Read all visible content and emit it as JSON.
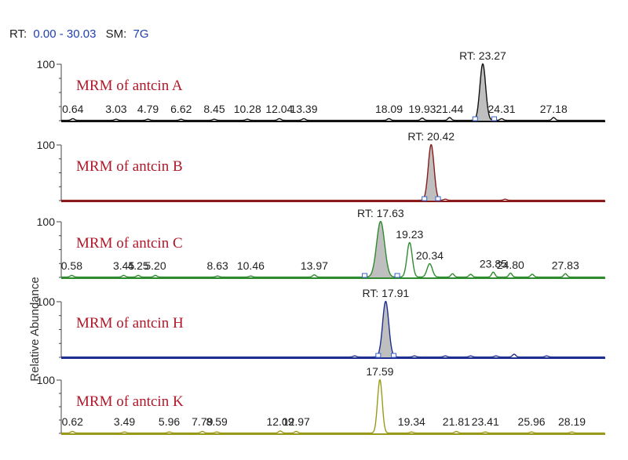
{
  "colors": {
    "title_red": "#b0182a",
    "header_blue": "#1f3fae",
    "fill_gray": "#bfbfbf",
    "marker": "#3a5fcf"
  },
  "chart_data": {
    "type": "line",
    "header": {
      "rt_label": "RT:",
      "rt_range": "0.00 - 30.03",
      "sm_label": "SM:",
      "sm_value": "7G"
    },
    "ylabel": "Relative Abundance",
    "xlim": [
      0.0,
      30.03
    ],
    "ylim": [
      0,
      100
    ],
    "panels": [
      {
        "name": "MRM of antcin A",
        "color": "#111111",
        "y_tick": "100",
        "peak": {
          "rt": 23.27,
          "width": 0.16,
          "height": 100,
          "label": "RT: 23.27",
          "shaded": true,
          "integration": [
            22.85,
            23.9
          ]
        },
        "minor_peaks": [
          {
            "x": 0.64,
            "h": 3
          },
          {
            "x": 3.03,
            "h": 2
          },
          {
            "x": 4.79,
            "h": 2
          },
          {
            "x": 6.62,
            "h": 2
          },
          {
            "x": 8.45,
            "h": 2
          },
          {
            "x": 10.28,
            "h": 2
          },
          {
            "x": 12.04,
            "h": 3
          },
          {
            "x": 13.39,
            "h": 3
          },
          {
            "x": 18.09,
            "h": 3
          },
          {
            "x": 19.93,
            "h": 4
          },
          {
            "x": 21.44,
            "h": 5
          },
          {
            "x": 24.31,
            "h": 3
          },
          {
            "x": 27.18,
            "h": 5
          }
        ],
        "labels": [
          {
            "x": 0.64,
            "text": "0.64"
          },
          {
            "x": 3.03,
            "text": "3.03"
          },
          {
            "x": 4.79,
            "text": "4.79"
          },
          {
            "x": 6.62,
            "text": "6.62"
          },
          {
            "x": 8.45,
            "text": "8.45"
          },
          {
            "x": 10.28,
            "text": "10.28"
          },
          {
            "x": 12.04,
            "text": "12.04"
          },
          {
            "x": 13.39,
            "text": "13.39"
          },
          {
            "x": 18.09,
            "text": "18.09"
          },
          {
            "x": 19.93,
            "text": "19.93"
          },
          {
            "x": 21.44,
            "text": "21.44"
          },
          {
            "x": 24.31,
            "text": "24.31"
          },
          {
            "x": 27.18,
            "text": "27.18"
          }
        ]
      },
      {
        "name": "MRM of antcin B",
        "color": "#8b1a1a",
        "y_tick": "100",
        "peak": {
          "rt": 20.42,
          "width": 0.16,
          "height": 100,
          "label": "RT: 20.42",
          "shaded": true,
          "integration": [
            20.05,
            20.8
          ]
        },
        "minor_peaks": [
          {
            "x": 21.2,
            "h": 2
          },
          {
            "x": 24.5,
            "h": 2
          }
        ],
        "labels": []
      },
      {
        "name": "MRM of antcin C",
        "color": "#2e8b2e",
        "y_tick": "100",
        "peak": {
          "rt": 17.63,
          "width": 0.22,
          "height": 100,
          "label": "RT: 17.63",
          "shaded": true,
          "integration": [
            16.75,
            18.55
          ]
        },
        "minor_peaks": [
          {
            "x": 0.58,
            "h": 3
          },
          {
            "x": 3.45,
            "h": 3
          },
          {
            "x": 4.25,
            "h": 3
          },
          {
            "x": 5.2,
            "h": 3
          },
          {
            "x": 8.63,
            "h": 2
          },
          {
            "x": 10.46,
            "h": 2
          },
          {
            "x": 13.97,
            "h": 4
          },
          {
            "x": 19.23,
            "h": 62
          },
          {
            "x": 20.34,
            "h": 24
          },
          {
            "x": 21.6,
            "h": 6
          },
          {
            "x": 22.6,
            "h": 5
          },
          {
            "x": 23.85,
            "h": 9
          },
          {
            "x": 24.8,
            "h": 7
          },
          {
            "x": 26.0,
            "h": 5
          },
          {
            "x": 27.83,
            "h": 6
          }
        ],
        "labels": [
          {
            "x": 0.58,
            "text": "0.58"
          },
          {
            "x": 3.45,
            "text": "3.45"
          },
          {
            "x": 4.25,
            "text": "4.25"
          },
          {
            "x": 5.2,
            "text": "5.20"
          },
          {
            "x": 8.63,
            "text": "8.63"
          },
          {
            "x": 10.46,
            "text": "10.46"
          },
          {
            "x": 13.97,
            "text": "13.97"
          },
          {
            "x": 19.23,
            "text": "19.23"
          },
          {
            "x": 20.34,
            "text": "20.34"
          },
          {
            "x": 23.85,
            "text": "23.85"
          },
          {
            "x": 24.8,
            "text": "24.80"
          },
          {
            "x": 27.83,
            "text": "27.83"
          }
        ]
      },
      {
        "name": "MRM of antcin H",
        "color": "#1f2f8f",
        "y_tick": "100",
        "peak": {
          "rt": 17.91,
          "width": 0.17,
          "height": 100,
          "label": "RT: 17.91",
          "shaded": true,
          "integration": [
            17.5,
            18.35
          ]
        },
        "minor_peaks": [
          {
            "x": 16.2,
            "h": 2
          },
          {
            "x": 19.5,
            "h": 2
          },
          {
            "x": 21.2,
            "h": 2
          },
          {
            "x": 22.6,
            "h": 2
          },
          {
            "x": 24.0,
            "h": 2
          },
          {
            "x": 25.0,
            "h": 5
          },
          {
            "x": 26.8,
            "h": 2
          }
        ],
        "labels": []
      },
      {
        "name": "MRM of antcin K",
        "color": "#9a9a1a",
        "y_tick": "100",
        "peak": {
          "rt": 17.59,
          "width": 0.13,
          "height": 100,
          "label": "17.59",
          "shaded": false,
          "integration": null
        },
        "minor_peaks": [
          {
            "x": 0.62,
            "h": 3
          },
          {
            "x": 3.49,
            "h": 2
          },
          {
            "x": 5.96,
            "h": 2
          },
          {
            "x": 7.79,
            "h": 3
          },
          {
            "x": 8.59,
            "h": 2
          },
          {
            "x": 12.09,
            "h": 4
          },
          {
            "x": 12.97,
            "h": 3
          },
          {
            "x": 19.34,
            "h": 2
          },
          {
            "x": 21.81,
            "h": 3
          },
          {
            "x": 23.41,
            "h": 2
          },
          {
            "x": 25.96,
            "h": 2
          },
          {
            "x": 28.19,
            "h": 2
          }
        ],
        "labels": [
          {
            "x": 0.62,
            "text": "0.62"
          },
          {
            "x": 3.49,
            "text": "3.49"
          },
          {
            "x": 5.96,
            "text": "5.96"
          },
          {
            "x": 7.79,
            "text": "7.79"
          },
          {
            "x": 8.59,
            "text": "8.59"
          },
          {
            "x": 12.09,
            "text": "12.09"
          },
          {
            "x": 12.97,
            "text": "12.97"
          },
          {
            "x": 19.34,
            "text": "19.34"
          },
          {
            "x": 21.81,
            "text": "21.81"
          },
          {
            "x": 23.41,
            "text": "23.41"
          },
          {
            "x": 25.96,
            "text": "25.96"
          },
          {
            "x": 28.19,
            "text": "28.19"
          }
        ]
      }
    ]
  }
}
